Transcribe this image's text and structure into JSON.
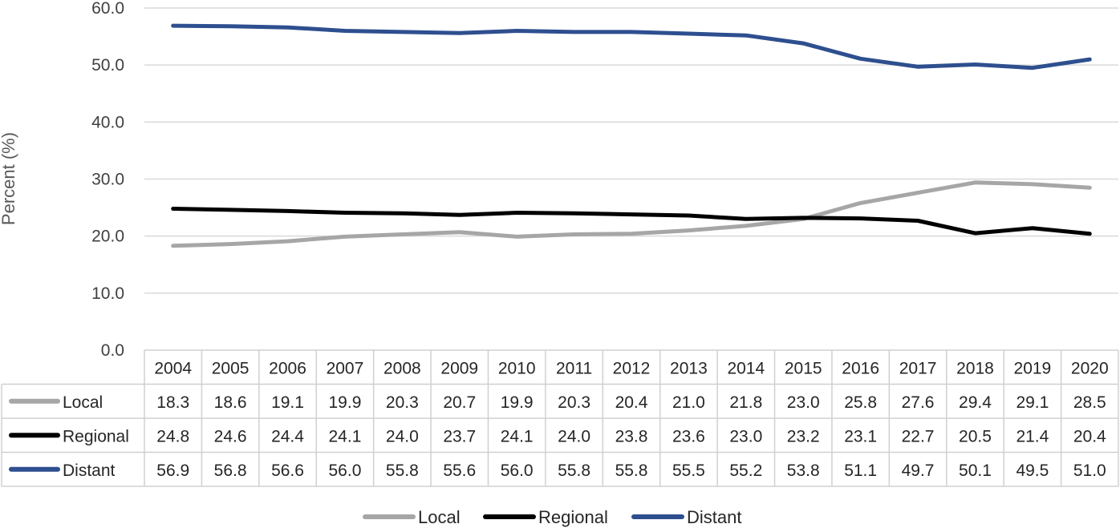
{
  "chart_data": {
    "type": "line",
    "title": "",
    "ylabel": "Percent (%)",
    "xlabel": "",
    "ylim": [
      0,
      60
    ],
    "yticks": [
      "0.0",
      "10.0",
      "20.0",
      "30.0",
      "40.0",
      "50.0",
      "60.0"
    ],
    "grid": true,
    "legend_position": "bottom",
    "data_table": true,
    "categories": [
      "2004",
      "2005",
      "2006",
      "2007",
      "2008",
      "2009",
      "2010",
      "2011",
      "2012",
      "2013",
      "2014",
      "2015",
      "2016",
      "2017",
      "2018",
      "2019",
      "2020"
    ],
    "series": [
      {
        "name": "Local",
        "color": "#a6a6a6",
        "values": [
          18.3,
          18.6,
          19.1,
          19.9,
          20.3,
          20.7,
          19.9,
          20.3,
          20.4,
          21.0,
          21.8,
          23.0,
          25.8,
          27.6,
          29.4,
          29.1,
          28.5
        ]
      },
      {
        "name": "Regional",
        "color": "#000000",
        "values": [
          24.8,
          24.6,
          24.4,
          24.1,
          24.0,
          23.7,
          24.1,
          24.0,
          23.8,
          23.6,
          23.0,
          23.2,
          23.1,
          22.7,
          20.5,
          21.4,
          20.4
        ]
      },
      {
        "name": "Distant",
        "color": "#2e4f8f",
        "values": [
          56.9,
          56.8,
          56.6,
          56.0,
          55.8,
          55.6,
          56.0,
          55.8,
          55.8,
          55.5,
          55.2,
          53.8,
          51.1,
          49.7,
          50.1,
          49.5,
          51.0
        ]
      }
    ]
  }
}
